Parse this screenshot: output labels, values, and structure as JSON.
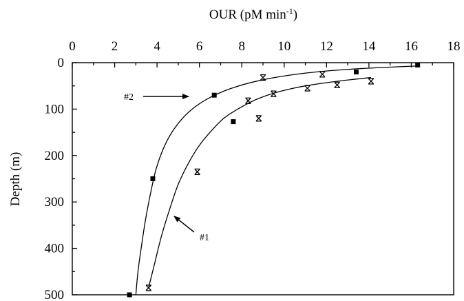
{
  "chart_data": {
    "type": "scatter",
    "xlabel_main": "OUR (pM min",
    "xlabel_sup": "-1",
    "xlabel_close": ")",
    "ylabel": "Depth (m)",
    "xlim": [
      0,
      18
    ],
    "ylim": [
      0,
      500
    ],
    "y_inverted": true,
    "x_axis_position": "top",
    "x_ticks": [
      0,
      2,
      4,
      6,
      8,
      10,
      12,
      14,
      16,
      18
    ],
    "y_ticks": [
      0,
      100,
      200,
      300,
      400,
      500
    ],
    "grid": false,
    "series": [
      {
        "name": "#2",
        "marker": "square",
        "points": [
          {
            "x": 16.3,
            "y": 5
          },
          {
            "x": 13.4,
            "y": 20
          },
          {
            "x": 6.7,
            "y": 70
          },
          {
            "x": 7.6,
            "y": 127
          },
          {
            "x": 3.8,
            "y": 250
          },
          {
            "x": 2.7,
            "y": 500
          }
        ],
        "curve": [
          {
            "x": 16.3,
            "y": 7
          },
          {
            "x": 13.5,
            "y": 13
          },
          {
            "x": 11.5,
            "y": 20
          },
          {
            "x": 9.8,
            "y": 30
          },
          {
            "x": 8.5,
            "y": 42
          },
          {
            "x": 7.4,
            "y": 57
          },
          {
            "x": 6.5,
            "y": 75
          },
          {
            "x": 5.8,
            "y": 95
          },
          {
            "x": 5.2,
            "y": 120
          },
          {
            "x": 4.7,
            "y": 150
          },
          {
            "x": 4.3,
            "y": 185
          },
          {
            "x": 3.95,
            "y": 230
          },
          {
            "x": 3.7,
            "y": 280
          },
          {
            "x": 3.45,
            "y": 340
          },
          {
            "x": 3.25,
            "y": 400
          },
          {
            "x": 3.1,
            "y": 450
          },
          {
            "x": 3.0,
            "y": 500
          }
        ]
      },
      {
        "name": "#1",
        "marker": "x",
        "points": [
          {
            "x": 14.1,
            "y": 40
          },
          {
            "x": 12.5,
            "y": 48
          },
          {
            "x": 11.8,
            "y": 25
          },
          {
            "x": 11.1,
            "y": 55
          },
          {
            "x": 9.5,
            "y": 67
          },
          {
            "x": 9.0,
            "y": 32
          },
          {
            "x": 8.8,
            "y": 120
          },
          {
            "x": 8.3,
            "y": 82
          },
          {
            "x": 5.9,
            "y": 235
          },
          {
            "x": 3.6,
            "y": 485
          }
        ],
        "curve": [
          {
            "x": 14.1,
            "y": 32
          },
          {
            "x": 12.5,
            "y": 40
          },
          {
            "x": 11.0,
            "y": 50
          },
          {
            "x": 9.8,
            "y": 62
          },
          {
            "x": 8.8,
            "y": 77
          },
          {
            "x": 8.0,
            "y": 95
          },
          {
            "x": 7.2,
            "y": 118
          },
          {
            "x": 6.6,
            "y": 145
          },
          {
            "x": 6.0,
            "y": 178
          },
          {
            "x": 5.5,
            "y": 215
          },
          {
            "x": 5.0,
            "y": 262
          },
          {
            "x": 4.6,
            "y": 315
          },
          {
            "x": 4.2,
            "y": 375
          },
          {
            "x": 3.9,
            "y": 430
          },
          {
            "x": 3.6,
            "y": 485
          }
        ]
      }
    ],
    "annotations": [
      {
        "text": "#2",
        "arrow_to_series": "#2"
      },
      {
        "text": "#1",
        "arrow_to_series": "#1"
      }
    ]
  }
}
